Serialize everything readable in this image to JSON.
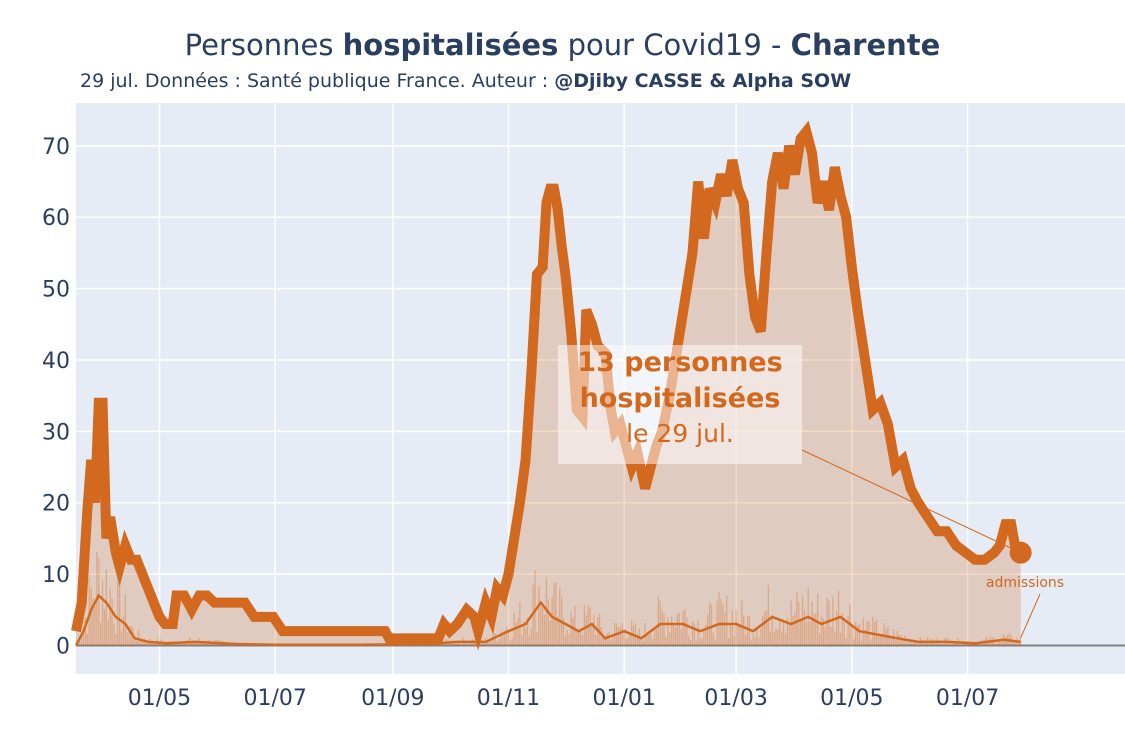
{
  "header": {
    "title_prefix": "Personnes ",
    "title_bold": "hospitalisées",
    "title_mid": " pour Covid19 - ",
    "title_region": "Charente",
    "subtitle_text": "29 jul. Données : Santé publique France. Auteur : ",
    "subtitle_author": "@Djiby CASSE & Alpha SOW"
  },
  "annotation": {
    "line1": "13 personnes",
    "line2": "hospitalisées",
    "line3": "le 29 jul.",
    "admissions_label": "admissions"
  },
  "colors": {
    "accent": "#d2691e",
    "fill": "rgba(210,105,30,0.25)",
    "plot_bg": "#e5ecf6",
    "text": "#2a3f5f"
  },
  "chart_data": {
    "type": "area",
    "title": "Personnes hospitalisées pour Covid19 - Charente",
    "x_start": "2020-03-18",
    "x_end": "2021-07-29",
    "xlim": [
      "2020-03-18",
      "2021-09-22"
    ],
    "ylim": [
      -4,
      76
    ],
    "yticks": [
      0,
      10,
      20,
      30,
      40,
      50,
      60,
      70
    ],
    "xticks": [
      {
        "date": "2020-05-01",
        "label": "01/05"
      },
      {
        "date": "2020-07-01",
        "label": "01/07"
      },
      {
        "date": "2020-09-01",
        "label": "01/09"
      },
      {
        "date": "2020-11-01",
        "label": "01/11"
      },
      {
        "date": "2021-01-01",
        "label": "01/01"
      },
      {
        "date": "2021-03-01",
        "label": "01/03"
      },
      {
        "date": "2021-05-01",
        "label": "01/05"
      },
      {
        "date": "2021-07-01",
        "label": "01/07"
      }
    ],
    "grid": true,
    "series": [
      {
        "name": "hospitalisées",
        "points": [
          [
            "2020-03-18",
            2
          ],
          [
            "2020-03-21",
            6
          ],
          [
            "2020-03-24",
            19
          ],
          [
            "2020-03-26",
            26
          ],
          [
            "2020-03-28",
            20
          ],
          [
            "2020-03-30",
            34
          ],
          [
            "2020-04-01",
            34
          ],
          [
            "2020-04-03",
            15
          ],
          [
            "2020-04-05",
            18
          ],
          [
            "2020-04-08",
            13
          ],
          [
            "2020-04-10",
            11
          ],
          [
            "2020-04-13",
            14
          ],
          [
            "2020-04-16",
            12
          ],
          [
            "2020-04-19",
            12
          ],
          [
            "2020-04-22",
            10
          ],
          [
            "2020-04-25",
            8
          ],
          [
            "2020-04-28",
            6
          ],
          [
            "2020-05-01",
            4
          ],
          [
            "2020-05-04",
            3
          ],
          [
            "2020-05-08",
            3
          ],
          [
            "2020-05-10",
            7
          ],
          [
            "2020-05-14",
            7
          ],
          [
            "2020-05-18",
            5
          ],
          [
            "2020-05-22",
            7
          ],
          [
            "2020-05-26",
            7
          ],
          [
            "2020-05-30",
            6
          ],
          [
            "2020-06-05",
            6
          ],
          [
            "2020-06-15",
            6
          ],
          [
            "2020-06-20",
            4
          ],
          [
            "2020-06-30",
            4
          ],
          [
            "2020-07-05",
            2
          ],
          [
            "2020-07-20",
            2
          ],
          [
            "2020-08-05",
            2
          ],
          [
            "2020-08-20",
            2
          ],
          [
            "2020-08-28",
            2
          ],
          [
            "2020-08-30",
            1
          ],
          [
            "2020-09-15",
            1
          ],
          [
            "2020-09-25",
            1
          ],
          [
            "2020-09-28",
            3
          ],
          [
            "2020-10-01",
            2
          ],
          [
            "2020-10-05",
            3
          ],
          [
            "2020-10-10",
            5
          ],
          [
            "2020-10-14",
            4
          ],
          [
            "2020-10-16",
            2
          ],
          [
            "2020-10-20",
            6
          ],
          [
            "2020-10-23",
            4
          ],
          [
            "2020-10-26",
            8
          ],
          [
            "2020-10-29",
            7
          ],
          [
            "2020-11-01",
            10
          ],
          [
            "2020-11-04",
            15
          ],
          [
            "2020-11-07",
            20
          ],
          [
            "2020-11-10",
            26
          ],
          [
            "2020-11-13",
            38
          ],
          [
            "2020-11-16",
            52
          ],
          [
            "2020-11-19",
            53
          ],
          [
            "2020-11-21",
            62
          ],
          [
            "2020-11-23",
            64
          ],
          [
            "2020-11-25",
            64
          ],
          [
            "2020-11-27",
            61
          ],
          [
            "2020-11-29",
            56
          ],
          [
            "2020-12-01",
            52
          ],
          [
            "2020-12-04",
            44
          ],
          [
            "2020-12-07",
            33
          ],
          [
            "2020-12-10",
            32
          ],
          [
            "2020-12-12",
            47
          ],
          [
            "2020-12-15",
            45
          ],
          [
            "2020-12-18",
            42
          ],
          [
            "2020-12-22",
            41
          ],
          [
            "2020-12-25",
            33
          ],
          [
            "2020-12-27",
            30
          ],
          [
            "2020-12-30",
            31
          ],
          [
            "2021-01-02",
            28
          ],
          [
            "2021-01-05",
            25
          ],
          [
            "2021-01-08",
            27
          ],
          [
            "2021-01-12",
            22
          ],
          [
            "2021-01-15",
            25
          ],
          [
            "2021-01-18",
            28
          ],
          [
            "2021-01-21",
            30
          ],
          [
            "2021-01-25",
            35
          ],
          [
            "2021-01-28",
            40
          ],
          [
            "2021-01-31",
            45
          ],
          [
            "2021-02-03",
            50
          ],
          [
            "2021-02-06",
            55
          ],
          [
            "2021-02-09",
            65
          ],
          [
            "2021-02-12",
            57
          ],
          [
            "2021-02-15",
            64
          ],
          [
            "2021-02-18",
            62
          ],
          [
            "2021-02-21",
            66
          ],
          [
            "2021-02-24",
            63
          ],
          [
            "2021-02-27",
            68
          ],
          [
            "2021-03-02",
            64
          ],
          [
            "2021-03-05",
            62
          ],
          [
            "2021-03-08",
            52
          ],
          [
            "2021-03-11",
            46
          ],
          [
            "2021-03-14",
            44
          ],
          [
            "2021-03-17",
            55
          ],
          [
            "2021-03-20",
            65
          ],
          [
            "2021-03-23",
            69
          ],
          [
            "2021-03-26",
            64
          ],
          [
            "2021-03-29",
            70
          ],
          [
            "2021-04-01",
            66
          ],
          [
            "2021-04-04",
            71
          ],
          [
            "2021-04-07",
            72
          ],
          [
            "2021-04-10",
            69
          ],
          [
            "2021-04-13",
            62
          ],
          [
            "2021-04-16",
            65
          ],
          [
            "2021-04-19",
            61
          ],
          [
            "2021-04-22",
            67
          ],
          [
            "2021-04-25",
            63
          ],
          [
            "2021-04-28",
            60
          ],
          [
            "2021-05-01",
            53
          ],
          [
            "2021-05-04",
            47
          ],
          [
            "2021-05-08",
            40
          ],
          [
            "2021-05-12",
            33
          ],
          [
            "2021-05-16",
            34
          ],
          [
            "2021-05-20",
            31
          ],
          [
            "2021-05-24",
            25
          ],
          [
            "2021-05-28",
            26
          ],
          [
            "2021-06-01",
            22
          ],
          [
            "2021-06-05",
            20
          ],
          [
            "2021-06-10",
            18
          ],
          [
            "2021-06-15",
            16
          ],
          [
            "2021-06-20",
            16
          ],
          [
            "2021-06-25",
            14
          ],
          [
            "2021-06-30",
            13
          ],
          [
            "2021-07-05",
            12
          ],
          [
            "2021-07-10",
            12
          ],
          [
            "2021-07-15",
            13
          ],
          [
            "2021-07-18",
            14
          ],
          [
            "2021-07-21",
            17
          ],
          [
            "2021-07-24",
            17
          ],
          [
            "2021-07-26",
            14
          ],
          [
            "2021-07-29",
            13
          ]
        ]
      },
      {
        "name": "admissions",
        "points": [
          [
            "2020-03-18",
            0
          ],
          [
            "2020-03-22",
            2
          ],
          [
            "2020-03-26",
            5
          ],
          [
            "2020-03-30",
            7
          ],
          [
            "2020-04-03",
            6
          ],
          [
            "2020-04-08",
            4
          ],
          [
            "2020-04-13",
            3
          ],
          [
            "2020-04-18",
            1
          ],
          [
            "2020-04-25",
            0.5
          ],
          [
            "2020-05-05",
            0.3
          ],
          [
            "2020-05-20",
            0.5
          ],
          [
            "2020-06-10",
            0.2
          ],
          [
            "2020-07-01",
            0.1
          ],
          [
            "2020-08-15",
            0.1
          ],
          [
            "2020-09-20",
            0.2
          ],
          [
            "2020-10-05",
            0.5
          ],
          [
            "2020-10-20",
            0.5
          ],
          [
            "2020-11-01",
            2
          ],
          [
            "2020-11-10",
            3
          ],
          [
            "2020-11-18",
            6
          ],
          [
            "2020-11-24",
            4
          ],
          [
            "2020-12-01",
            3
          ],
          [
            "2020-12-08",
            2
          ],
          [
            "2020-12-15",
            3
          ],
          [
            "2020-12-22",
            1
          ],
          [
            "2021-01-01",
            2
          ],
          [
            "2021-01-10",
            1
          ],
          [
            "2021-01-20",
            3
          ],
          [
            "2021-02-01",
            3
          ],
          [
            "2021-02-10",
            2
          ],
          [
            "2021-02-20",
            3
          ],
          [
            "2021-03-01",
            3
          ],
          [
            "2021-03-10",
            2
          ],
          [
            "2021-03-20",
            4
          ],
          [
            "2021-03-30",
            3
          ],
          [
            "2021-04-08",
            4
          ],
          [
            "2021-04-15",
            3
          ],
          [
            "2021-04-25",
            4
          ],
          [
            "2021-05-05",
            2
          ],
          [
            "2021-05-15",
            1.5
          ],
          [
            "2021-05-25",
            1
          ],
          [
            "2021-06-05",
            0.5
          ],
          [
            "2021-06-20",
            0.5
          ],
          [
            "2021-07-05",
            0.3
          ],
          [
            "2021-07-20",
            0.8
          ],
          [
            "2021-07-29",
            0.5
          ]
        ]
      }
    ]
  }
}
